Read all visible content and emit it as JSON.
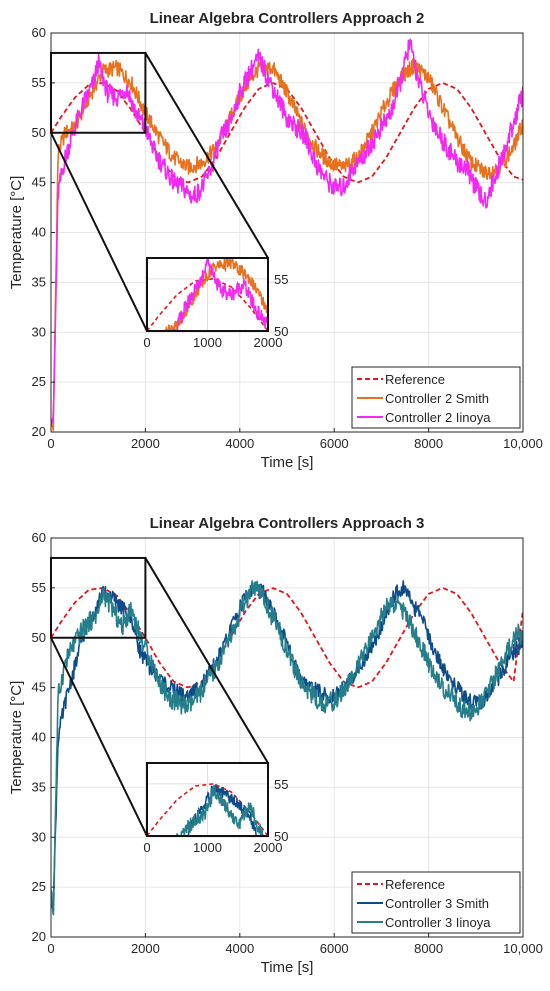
{
  "chart_data": [
    {
      "type": "line",
      "title": "Linear Algebra Controllers Approach 2",
      "xlabel": "Time [s]",
      "ylabel": "Temperature [°C]",
      "xlim": [
        0,
        10000
      ],
      "ylim": [
        20,
        60
      ],
      "xticks": [
        "0",
        "2000",
        "4000",
        "6000",
        "8000",
        "10,000"
      ],
      "yticks": [
        "20",
        "25",
        "30",
        "35",
        "40",
        "45",
        "50",
        "55",
        "60"
      ],
      "grid": true,
      "legend_position": "bottom-right",
      "zoom_region": {
        "x": [
          0,
          2000
        ],
        "y": [
          50,
          58
        ]
      },
      "inset": {
        "xlim": [
          0,
          2000
        ],
        "ylim": [
          50,
          57
        ],
        "xticks": [
          "0",
          "1000",
          "2000"
        ],
        "yticks": [
          "50",
          "55"
        ]
      },
      "series": [
        {
          "name": "Reference",
          "style": "dashed",
          "color": "#e8141c",
          "x": [
            0,
            200,
            500,
            800,
            1100,
            1400,
            1700,
            2000,
            2300,
            2600,
            2900,
            3200,
            3500,
            3800,
            4100,
            4400,
            4700,
            5000,
            5300,
            5600,
            5900,
            6200,
            6500,
            6800,
            7100,
            7400,
            7700,
            8000,
            8300,
            8600,
            8900,
            9200,
            9500,
            9800,
            10000
          ],
          "y": [
            50,
            51.5,
            53.5,
            54.8,
            55,
            54.2,
            52.3,
            50,
            47.5,
            45.6,
            45,
            45.6,
            47.5,
            50,
            52.5,
            54.4,
            55,
            54.4,
            52.5,
            50,
            47.5,
            45.6,
            45,
            45.6,
            47.5,
            50,
            52.5,
            54.4,
            55,
            54.4,
            52.5,
            50,
            47.5,
            45.6,
            45.3
          ]
        },
        {
          "name": "Controller 2 Smith",
          "style": "solid",
          "color": "#e8711e",
          "x": [
            0,
            50,
            150,
            300,
            500,
            800,
            1100,
            1400,
            1700,
            2000,
            2300,
            2600,
            2900,
            3200,
            3500,
            3800,
            4100,
            4400,
            4700,
            5000,
            5300,
            5600,
            5900,
            6200,
            6500,
            6800,
            7100,
            7400,
            7700,
            8000,
            8300,
            8600,
            8900,
            9200,
            9500,
            9800,
            10000
          ],
          "y": [
            21,
            20.5,
            48,
            50,
            50.5,
            53.5,
            56.2,
            56.5,
            55,
            52,
            49.5,
            47.5,
            46.5,
            47,
            48.5,
            51.5,
            54.5,
            56.5,
            56.5,
            54,
            51,
            48.5,
            47,
            46.5,
            47.5,
            50,
            53,
            55.5,
            56.8,
            55.5,
            52.5,
            49.5,
            47,
            46,
            46.5,
            48.5,
            51
          ]
        },
        {
          "name": "Controller 2 Iinoya",
          "style": "solid",
          "color": "#f229f2",
          "x": [
            0,
            50,
            150,
            300,
            500,
            700,
            900,
            1000,
            1200,
            1400,
            1600,
            1800,
            2000,
            2200,
            2400,
            2600,
            2800,
            3000,
            3200,
            3400,
            3600,
            3800,
            4000,
            4200,
            4400,
            4600,
            4800,
            5000,
            5200,
            5400,
            5600,
            5800,
            6000,
            6200,
            6400,
            6600,
            6800,
            7000,
            7200,
            7400,
            7600,
            7800,
            8000,
            8200,
            8400,
            8600,
            8800,
            9000,
            9200,
            9400,
            9600,
            9800,
            10000
          ],
          "y": [
            22,
            21,
            44,
            47.5,
            50.5,
            53,
            55,
            57,
            54,
            53.5,
            54.5,
            52,
            50.5,
            48,
            46.5,
            45,
            44.5,
            43.5,
            44.5,
            46.5,
            49.5,
            51,
            54,
            56,
            57.5,
            55.5,
            53.5,
            51.5,
            50.5,
            49.5,
            47,
            45.5,
            44.5,
            44.5,
            46.5,
            47.5,
            49,
            50.5,
            52,
            55,
            59,
            55,
            52,
            50,
            48.5,
            47,
            46.5,
            44.5,
            43,
            45.5,
            48,
            51,
            54
          ]
        }
      ]
    },
    {
      "type": "line",
      "title": "Linear Algebra Controllers Approach 3",
      "xlabel": "Time [s]",
      "ylabel": "Temperature [°C]",
      "xlim": [
        0,
        10000
      ],
      "ylim": [
        20,
        60
      ],
      "xticks": [
        "0",
        "2000",
        "4000",
        "6000",
        "8000",
        "10,000"
      ],
      "yticks": [
        "20",
        "25",
        "30",
        "35",
        "40",
        "45",
        "50",
        "55",
        "60"
      ],
      "grid": true,
      "legend_position": "bottom-right",
      "zoom_region": {
        "x": [
          0,
          2000
        ],
        "y": [
          50,
          58
        ]
      },
      "inset": {
        "xlim": [
          0,
          2000
        ],
        "ylim": [
          50,
          57
        ],
        "xticks": [
          "0",
          "1000",
          "2000"
        ],
        "yticks": [
          "50",
          "55"
        ]
      },
      "series": [
        {
          "name": "Reference",
          "style": "dashed",
          "color": "#e8141c",
          "x": [
            0,
            200,
            500,
            800,
            1100,
            1400,
            1700,
            2000,
            2300,
            2600,
            2900,
            3200,
            3500,
            3800,
            4100,
            4400,
            4700,
            5000,
            5300,
            5600,
            5900,
            6200,
            6500,
            6800,
            7100,
            7400,
            7700,
            8000,
            8300,
            8600,
            8900,
            9200,
            9500,
            9800,
            10000
          ],
          "y": [
            50,
            51.5,
            53.5,
            54.8,
            55,
            54.2,
            52.3,
            50,
            47.5,
            45.6,
            45,
            45.6,
            47.5,
            50,
            52.5,
            54.4,
            55,
            54.4,
            52.5,
            50,
            47.5,
            45.6,
            45,
            45.6,
            47.5,
            50,
            52.5,
            54.4,
            55,
            54.4,
            52.5,
            50,
            47.5,
            45.6,
            52.8
          ]
        },
        {
          "name": "Controller 3 Smith",
          "style": "solid",
          "color": "#0d4c8a",
          "x": [
            0,
            50,
            150,
            300,
            500,
            700,
            900,
            1100,
            1300,
            1500,
            1700,
            1900,
            2100,
            2300,
            2500,
            2700,
            2900,
            3100,
            3300,
            3500,
            3700,
            3900,
            4100,
            4300,
            4500,
            4700,
            4900,
            5100,
            5300,
            5500,
            5700,
            5900,
            6100,
            6300,
            6500,
            6700,
            6900,
            7100,
            7300,
            7500,
            7700,
            7900,
            8100,
            8300,
            8500,
            8700,
            8900,
            9100,
            9300,
            9500,
            9700,
            9900,
            10000
          ],
          "y": [
            24,
            23,
            40,
            43.5,
            47,
            50.5,
            52.5,
            54.5,
            54,
            53,
            52,
            48.5,
            47,
            46,
            45,
            44.5,
            44,
            45,
            46,
            47.5,
            49.5,
            52,
            54,
            55,
            54.5,
            52.5,
            50.5,
            48,
            46,
            45,
            44.5,
            44,
            44.5,
            45.5,
            47,
            48,
            50,
            52.5,
            54.5,
            55,
            53,
            51.5,
            49,
            47,
            45.5,
            44.5,
            43.5,
            43.5,
            44.5,
            46,
            48,
            49,
            50
          ]
        },
        {
          "name": "Controller 3 Iinoya",
          "style": "solid",
          "color": "#267e8a",
          "x": [
            0,
            50,
            150,
            300,
            500,
            700,
            900,
            1000,
            1100,
            1300,
            1500,
            1700,
            1900,
            2100,
            2300,
            2500,
            2700,
            2900,
            3100,
            3300,
            3500,
            3700,
            3900,
            4100,
            4300,
            4500,
            4700,
            4900,
            5100,
            5300,
            5500,
            5700,
            5900,
            6100,
            6300,
            6500,
            6700,
            6900,
            7100,
            7300,
            7500,
            7700,
            7900,
            8100,
            8300,
            8500,
            8700,
            8900,
            9100,
            9300,
            9500,
            9700,
            9900,
            10000
          ],
          "y": [
            24,
            23,
            44,
            47.5,
            49.5,
            51,
            52,
            52.5,
            54.5,
            53,
            51,
            53,
            50,
            48,
            45.5,
            44,
            43.5,
            43,
            44,
            45.5,
            47,
            49,
            51,
            53.5,
            55,
            54,
            52,
            50,
            47.5,
            45.5,
            44.5,
            43.5,
            43.5,
            44,
            45.5,
            47,
            49,
            51,
            53,
            53.5,
            52.5,
            50.5,
            48.5,
            46.5,
            45,
            44,
            43,
            42.5,
            43.5,
            45,
            47,
            49,
            50.5,
            50
          ]
        }
      ]
    }
  ]
}
